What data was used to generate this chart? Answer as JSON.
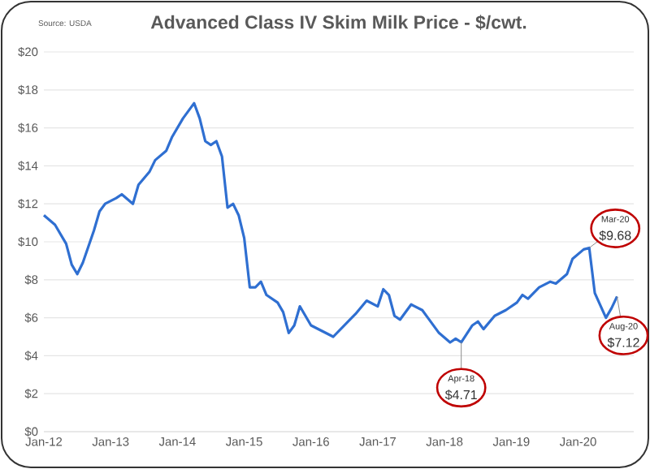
{
  "chart_data": {
    "type": "line",
    "title": "Advanced Class IV Skim Milk Price - $/cwt.",
    "x": [
      "2012-01",
      "2012-03",
      "2012-05",
      "2012-06",
      "2012-07",
      "2012-08",
      "2012-10",
      "2012-11",
      "2012-12",
      "2013-02",
      "2013-03",
      "2013-05",
      "2013-06",
      "2013-08",
      "2013-09",
      "2013-11",
      "2013-12",
      "2014-02",
      "2014-04",
      "2014-05",
      "2014-06",
      "2014-07",
      "2014-08",
      "2014-09",
      "2014-10",
      "2014-11",
      "2014-12",
      "2015-01",
      "2015-02",
      "2015-03",
      "2015-04",
      "2015-05",
      "2015-07",
      "2015-08",
      "2015-09",
      "2015-10",
      "2015-11",
      "2016-01",
      "2016-03",
      "2016-05",
      "2016-08",
      "2016-09",
      "2016-11",
      "2017-01",
      "2017-02",
      "2017-03",
      "2017-04",
      "2017-05",
      "2017-07",
      "2017-09",
      "2017-10",
      "2017-12",
      "2018-02",
      "2018-03",
      "2018-04",
      "2018-06",
      "2018-07",
      "2018-08",
      "2018-10",
      "2018-12",
      "2019-02",
      "2019-03",
      "2019-04",
      "2019-06",
      "2019-08",
      "2019-09",
      "2019-11",
      "2019-12",
      "2020-02",
      "2020-03",
      "2020-04",
      "2020-06",
      "2020-07",
      "2020-08"
    ],
    "values": [
      11.4,
      10.9,
      9.9,
      8.8,
      8.3,
      8.9,
      10.6,
      11.6,
      12.0,
      12.3,
      12.5,
      12.0,
      13.0,
      13.7,
      14.3,
      14.8,
      15.5,
      16.5,
      17.3,
      16.5,
      15.3,
      15.1,
      15.3,
      14.5,
      11.8,
      12.0,
      11.4,
      10.2,
      7.6,
      7.6,
      7.9,
      7.2,
      6.8,
      6.3,
      5.2,
      5.6,
      6.6,
      5.6,
      5.3,
      5.0,
      5.9,
      6.2,
      6.9,
      6.6,
      7.5,
      7.2,
      6.1,
      5.9,
      6.7,
      6.4,
      6.0,
      5.2,
      4.7,
      4.9,
      4.71,
      5.6,
      5.8,
      5.4,
      6.1,
      6.4,
      6.8,
      7.2,
      7.0,
      7.6,
      7.9,
      7.8,
      8.3,
      9.1,
      9.6,
      9.68,
      7.3,
      6.0,
      6.5,
      7.12
    ],
    "color": "#2f6fd1",
    "xlim": [
      "2012-01",
      "2020-11"
    ],
    "xticks": [
      {
        "value": "2012-01",
        "label": "Jan-12"
      },
      {
        "value": "2013-01",
        "label": "Jan-13"
      },
      {
        "value": "2014-01",
        "label": "Jan-14"
      },
      {
        "value": "2015-01",
        "label": "Jan-15"
      },
      {
        "value": "2016-01",
        "label": "Jan-16"
      },
      {
        "value": "2017-01",
        "label": "Jan-17"
      },
      {
        "value": "2018-01",
        "label": "Jan-18"
      },
      {
        "value": "2019-01",
        "label": "Jan-19"
      },
      {
        "value": "2020-01",
        "label": "Jan-20"
      }
    ],
    "ylim": [
      0,
      20
    ],
    "yticks": [
      {
        "value": 0,
        "label": "$0"
      },
      {
        "value": 2,
        "label": "$2"
      },
      {
        "value": 4,
        "label": "$4"
      },
      {
        "value": 6,
        "label": "$6"
      },
      {
        "value": 8,
        "label": "$8"
      },
      {
        "value": 10,
        "label": "$10"
      },
      {
        "value": 12,
        "label": "$12"
      },
      {
        "value": 14,
        "label": "$14"
      },
      {
        "value": 16,
        "label": "$16"
      },
      {
        "value": 18,
        "label": "$18"
      },
      {
        "value": 20,
        "label": "$20"
      }
    ],
    "grid": "y",
    "annotations": [
      "Source: USDA",
      {
        "text": "Apr-18",
        "x": "2018-04",
        "y": 4.71
      },
      {
        "text": "$4.71",
        "x": "2018-04",
        "y": 4.71
      },
      {
        "text": "Mar-20",
        "x": "2020-03",
        "y": 9.68
      },
      {
        "text": "$9.68",
        "x": "2020-03",
        "y": 9.68
      },
      {
        "text": "Aug-20",
        "x": "2020-08",
        "y": 7.12
      },
      {
        "text": "$7.12",
        "x": "2020-08",
        "y": 7.12
      }
    ]
  }
}
